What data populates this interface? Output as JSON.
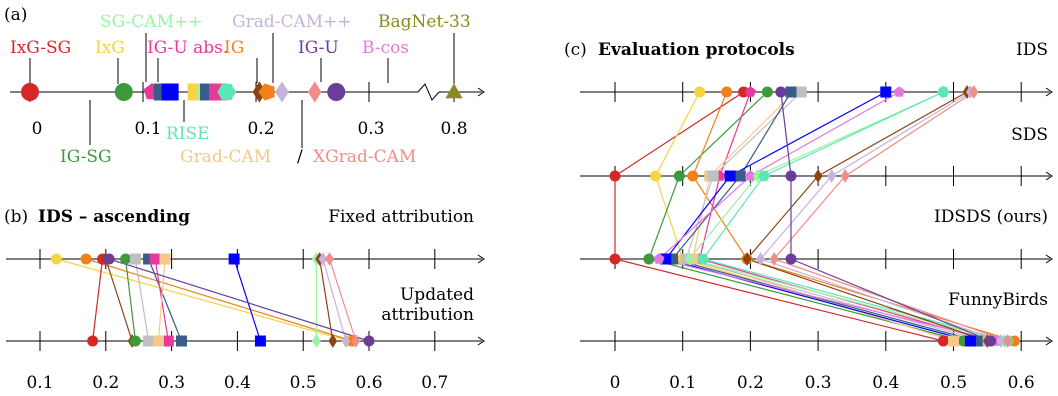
{
  "method_colors": {
    "IxG-SG": "#d62728",
    "IxG": "#f5d442",
    "SG-CAM++": "#98f5a0",
    "Grad-CAM++": "#c5b3dc",
    "IG-U abs.": "#e8389a",
    "IG": "#f2801b",
    "IG-U": "#6a3d9a",
    "B-cos": "#e378e0",
    "BagNet-33": "#8a8a1f",
    "IG-SG": "#3c9a3c",
    "RISE": "#5de6b3",
    "Grad-CAM": "#f4c78a",
    "XGrad-CAM": "#f08d86",
    "ProtoPNet-like": "#0000ff",
    "LRP-like": "#c0c0c0",
    "Deeplift-like": "#8b4513",
    "GuidedBP-like": "#3b5b8a"
  },
  "panel_a": {
    "label": "(a)",
    "method_labels": [
      {
        "text": "IxG-SG",
        "color": "#d62728"
      },
      {
        "text": "IxG",
        "color": "#f5d442"
      },
      {
        "text": "SG-CAM++",
        "color": "#98f5a0"
      },
      {
        "text": "Grad-CAM++",
        "color": "#c5b3dc"
      },
      {
        "text": "IG-U abs.",
        "color": "#e8389a"
      },
      {
        "text": "IG",
        "color": "#f2801b"
      },
      {
        "text": "IG-U",
        "color": "#6a3d9a"
      },
      {
        "text": "B-cos",
        "color": "#e378e0"
      },
      {
        "text": "BagNet-33",
        "color": "#8a8a1f"
      },
      {
        "text": "IG-SG",
        "color": "#3c9a3c"
      },
      {
        "text": "RISE",
        "color": "#5de6b3"
      },
      {
        "text": "Grad-CAM",
        "color": "#f4c78a"
      },
      {
        "text": "/",
        "color": "#000000"
      },
      {
        "text": "XGrad-CAM",
        "color": "#f08d86"
      }
    ],
    "tick_labels": [
      "0",
      "0.1",
      "0.2",
      "0.3",
      "0.8"
    ],
    "markers": [
      {
        "value": 0.0,
        "shape": "circle",
        "color": "#d62728"
      },
      {
        "value": 0.083,
        "shape": "circle",
        "color": "#3c9a3c"
      },
      {
        "value": 0.108,
        "shape": "pentagon",
        "color": "#e8389a"
      },
      {
        "value": 0.117,
        "shape": "square",
        "color": "#3b5b8a"
      },
      {
        "value": 0.124,
        "shape": "square",
        "color": "#0000ff"
      },
      {
        "value": 0.147,
        "shape": "square",
        "color": "#f5d442"
      },
      {
        "value": 0.152,
        "shape": "triangle-right",
        "color": "#98f5a0"
      },
      {
        "value": 0.158,
        "shape": "square",
        "color": "#3b5b8a"
      },
      {
        "value": 0.166,
        "shape": "square",
        "color": "#e8389a"
      },
      {
        "value": 0.174,
        "shape": "hexagon",
        "color": "#5de6b3"
      },
      {
        "value": 0.203,
        "shape": "diamond",
        "color": "#8b4513"
      },
      {
        "value": 0.21,
        "shape": "pentagon-left",
        "color": "#f2801b"
      },
      {
        "value": 0.223,
        "shape": "diamond",
        "color": "#c5b3dc"
      },
      {
        "value": 0.252,
        "shape": "diamond",
        "color": "#f08d86"
      },
      {
        "value": 0.271,
        "shape": "circle",
        "color": "#6a3d9a"
      },
      {
        "value": 0.33,
        "shape": "triangle",
        "color": "#e378e0"
      },
      {
        "value": 0.8,
        "shape": "triangle",
        "color": "#8a8a1f"
      }
    ]
  },
  "panel_b": {
    "label": "(b)",
    "title": "IDS – ascending",
    "fixed_label": "Fixed attribution",
    "updated_label_line1": "Updated",
    "updated_label_line2": "attribution",
    "tick_labels": [
      "0.1",
      "0.2",
      "0.3",
      "0.4",
      "0.5",
      "0.6",
      "0.7"
    ]
  },
  "panel_c": {
    "label": "(c)",
    "title": "Evaluation protocols",
    "row_labels": [
      "IDS",
      "SDS",
      "IDSDS (ours)",
      "FunnyBirds"
    ],
    "tick_labels": [
      "0",
      "0.1",
      "0.2",
      "0.3",
      "0.4",
      "0.5",
      "0.6"
    ]
  },
  "chart_data": [
    {
      "type": "scatter",
      "panel": "(a)",
      "title": "",
      "xlabel": "",
      "x_ticks": [
        "0",
        "0.1",
        "0.2",
        "0.3",
        "0.8"
      ],
      "x_axis_break_between": [
        0.3,
        0.8
      ],
      "points": [
        {
          "method": "IxG-SG",
          "x": 0.0
        },
        {
          "method": "IG-SG",
          "x": 0.083
        },
        {
          "method": "IxG",
          "x": 0.147
        },
        {
          "method": "SG-CAM++",
          "x": 0.152
        },
        {
          "method": "IG-U abs.",
          "x": 0.166
        },
        {
          "method": "RISE",
          "x": 0.174
        },
        {
          "method": "IG",
          "x": 0.21
        },
        {
          "method": "Grad-CAM++",
          "x": 0.223
        },
        {
          "method": "Grad-CAM / XGrad-CAM",
          "x": 0.252
        },
        {
          "method": "IG-U",
          "x": 0.271
        },
        {
          "method": "B-cos",
          "x": 0.33
        },
        {
          "method": "BagNet-33",
          "x": 0.8
        }
      ]
    },
    {
      "type": "line",
      "panel": "(b)",
      "title": "IDS – ascending",
      "x_ticks": [
        "0.1",
        "0.2",
        "0.3",
        "0.4",
        "0.5",
        "0.6",
        "0.7"
      ],
      "xlim": [
        0.05,
        0.75
      ],
      "rows": [
        "Fixed attribution",
        "Updated attribution"
      ],
      "series": [
        {
          "color": "#f5d442",
          "shape": "circle",
          "values": [
            0.125,
            0.57
          ]
        },
        {
          "color": "#f2801b",
          "shape": "circle",
          "values": [
            0.17,
            0.575
          ]
        },
        {
          "color": "#d62728",
          "shape": "circle",
          "values": [
            0.195,
            0.18
          ]
        },
        {
          "color": "#8b4513",
          "shape": "diamond",
          "values": [
            0.2,
            0.24
          ]
        },
        {
          "color": "#3c9a3c",
          "shape": "circle",
          "values": [
            0.23,
            0.245
          ]
        },
        {
          "color": "#c0c0c0",
          "shape": "square",
          "values": [
            0.245,
            0.265
          ]
        },
        {
          "color": "#3b5b8a",
          "shape": "square",
          "values": [
            0.265,
            0.315
          ]
        },
        {
          "color": "#e8389a",
          "shape": "square",
          "values": [
            0.275,
            0.295
          ]
        },
        {
          "color": "#f4c78a",
          "shape": "square",
          "values": [
            0.29,
            0.28
          ]
        },
        {
          "color": "#0000ff",
          "shape": "square",
          "values": [
            0.395,
            0.435
          ]
        },
        {
          "color": "#98f5a0",
          "shape": "diamond",
          "values": [
            0.52,
            0.52
          ]
        },
        {
          "color": "#8b4513",
          "shape": "diamond",
          "values": [
            0.525,
            0.545
          ]
        },
        {
          "color": "#c5b3dc",
          "shape": "diamond",
          "values": [
            0.53,
            0.565
          ]
        },
        {
          "color": "#f08d86",
          "shape": "diamond",
          "values": [
            0.54,
            0.58
          ]
        },
        {
          "color": "#6a3d9a",
          "shape": "circle",
          "values": [
            0.205,
            0.6
          ]
        }
      ]
    },
    {
      "type": "line",
      "panel": "(c)",
      "title": "Evaluation protocols",
      "x_ticks": [
        "0",
        "0.1",
        "0.2",
        "0.3",
        "0.4",
        "0.5",
        "0.6"
      ],
      "xlim": [
        -0.05,
        0.65
      ],
      "rows": [
        "IDS",
        "SDS",
        "IDSDS (ours)",
        "FunnyBirds"
      ],
      "series": [
        {
          "color": "#d62728",
          "shape": "circle",
          "values": [
            0.19,
            0.0,
            0.0,
            0.485
          ]
        },
        {
          "color": "#f5d442",
          "shape": "circle",
          "values": [
            0.125,
            0.06,
            0.1,
            0.505
          ]
        },
        {
          "color": "#3c9a3c",
          "shape": "circle",
          "values": [
            0.225,
            0.095,
            0.05,
            0.515
          ]
        },
        {
          "color": "#f2801b",
          "shape": "circle",
          "values": [
            0.165,
            0.115,
            0.195,
            0.59
          ]
        },
        {
          "color": "#e8389a",
          "shape": "pentagon",
          "values": [
            0.2,
            0.155,
            0.125,
            0.555
          ]
        },
        {
          "color": "#f4c78a",
          "shape": "square",
          "values": [
            0.265,
            0.14,
            0.115,
            0.5
          ]
        },
        {
          "color": "#c0c0c0",
          "shape": "square",
          "values": [
            0.275,
            0.145,
            0.105,
            0.545
          ]
        },
        {
          "color": "#3b5b8a",
          "shape": "square",
          "values": [
            0.26,
            0.185,
            0.085,
            0.535
          ]
        },
        {
          "color": "#0000ff",
          "shape": "square",
          "values": [
            0.4,
            0.17,
            0.075,
            0.525
          ]
        },
        {
          "color": "#e378e0",
          "shape": "pentagon",
          "values": [
            0.42,
            0.2,
            0.065,
            0.565
          ]
        },
        {
          "color": "#98f5a0",
          "shape": "diamond",
          "values": [
            0.485,
            0.21,
            0.11,
            0.575
          ]
        },
        {
          "color": "#5de6b3",
          "shape": "hexagon",
          "values": [
            0.485,
            0.22,
            0.13,
            0.58
          ]
        },
        {
          "color": "#8b4513",
          "shape": "diamond",
          "values": [
            0.52,
            0.3,
            0.195,
            0.55
          ]
        },
        {
          "color": "#c5b3dc",
          "shape": "diamond",
          "values": [
            0.525,
            0.32,
            0.215,
            0.57
          ]
        },
        {
          "color": "#f08d86",
          "shape": "diamond",
          "values": [
            0.53,
            0.34,
            0.235,
            0.58
          ]
        },
        {
          "color": "#6a3d9a",
          "shape": "circle",
          "values": [
            0.245,
            0.26,
            0.26,
            0.555
          ]
        }
      ]
    }
  ]
}
